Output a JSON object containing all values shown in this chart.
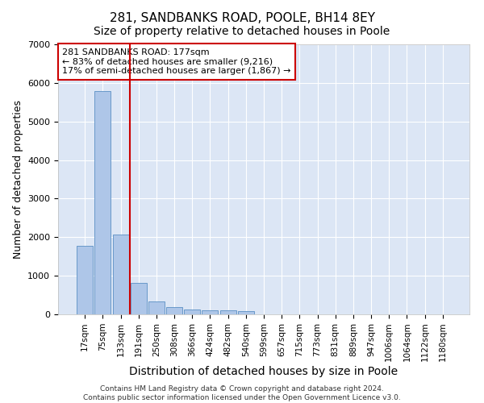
{
  "title": "281, SANDBANKS ROAD, POOLE, BH14 8EY",
  "subtitle": "Size of property relative to detached houses in Poole",
  "xlabel": "Distribution of detached houses by size in Poole",
  "ylabel": "Number of detached properties",
  "bar_labels": [
    "17sqm",
    "75sqm",
    "133sqm",
    "191sqm",
    "250sqm",
    "308sqm",
    "366sqm",
    "424sqm",
    "482sqm",
    "540sqm",
    "599sqm",
    "657sqm",
    "715sqm",
    "773sqm",
    "831sqm",
    "889sqm",
    "947sqm",
    "1006sqm",
    "1064sqm",
    "1122sqm",
    "1180sqm"
  ],
  "bar_values": [
    1780,
    5780,
    2060,
    820,
    340,
    195,
    115,
    100,
    95,
    75,
    0,
    0,
    0,
    0,
    0,
    0,
    0,
    0,
    0,
    0,
    0
  ],
  "bar_color": "#aec6e8",
  "bar_edge_color": "#5a8fc4",
  "vline_color": "#cc0000",
  "vline_pos": 2.5,
  "annotation_text": "281 SANDBANKS ROAD: 177sqm\n← 83% of detached houses are smaller (9,216)\n17% of semi-detached houses are larger (1,867) →",
  "ylim": [
    0,
    7000
  ],
  "yticks": [
    0,
    1000,
    2000,
    3000,
    4000,
    5000,
    6000,
    7000
  ],
  "bg_color": "#dce6f5",
  "footer": "Contains HM Land Registry data © Crown copyright and database right 2024.\nContains public sector information licensed under the Open Government Licence v3.0.",
  "title_fontsize": 11,
  "subtitle_fontsize": 10,
  "tick_fontsize": 7.5,
  "ylabel_fontsize": 9,
  "xlabel_fontsize": 10
}
